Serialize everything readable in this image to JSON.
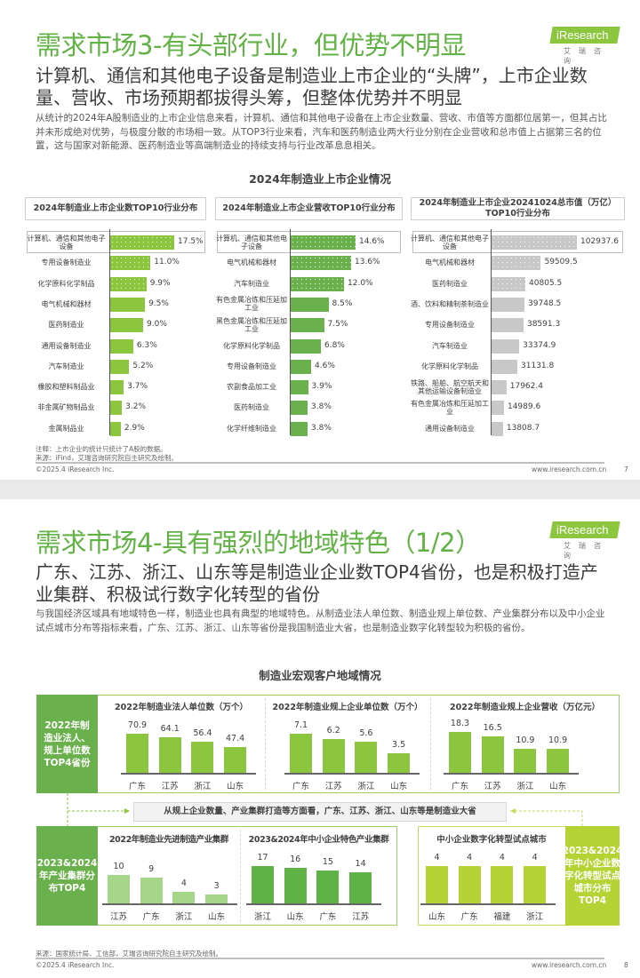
{
  "slide1": {
    "title": "需求市场3-有头部行业，但优势不明显",
    "subtitle": "计算机、通信和其他电子设备是制造业上市企业的“头牌”，上市企业数量、营收、市场预期都拔得头筹，但整体优势并不明显",
    "body": "从统计的2024年A股制造业的上市企业信息来看，计算机、通信和其他电子设备在上市企业数量、营收、市值等方面都位居第一，但其占比并未形成绝对优势，与极度分散的市场相一致。从TOP3行业来看，汽车和医药制造业两大行业分别在企业营收和总市值上占据第三名的位置，这与国家对新能源、医药制造业等高端制造业的持续支持与行业改革息息相关。",
    "chart_title": "2024年制造业上市企业情况",
    "note": "注释：上市企业的统计只统计了A股的数据。",
    "source": "来源：iFind，艾瑞咨询研究院自主研究及绘制。",
    "copyright": "©2025.4 iResearch Inc.",
    "website": "www.iresearch.com.cn",
    "page": "7"
  },
  "slide2": {
    "title": "需求市场4-具有强烈的地域特色（1/2）",
    "subtitle": "广东、江苏、浙江、山东等是制造业企业数TOP4省份，也是积极打造产业集群、积极试行数字化转型的省份",
    "body": "与我国经济区域具有地域特色一样，制造业也具有典型的地域特色。从制造业法人单位数、制造业规上单位数、产业集群分布以及中小企业试点城市分布等指标来看，广东、江苏、浙江、山东等省份是我国制造业大省，也是制造业数字化转型较为积极的省份。",
    "chart_title": "制造业宏观客户地域情况",
    "label_top": "2022年制造业法人、规上单位数TOP4省份",
    "label_bottom_left": "2023&2024年产业集群分布TOP4",
    "label_bottom_right": "2023&2024年中小企业数字化转型试点城市分布TOP4",
    "banner": "从规上企业数量、产业集群打造等方面看，广东、江苏、浙江、山东等是制造业大省",
    "source": "来源：国家统计局、工信部，艾瑞咨询研究院自主研究及绘制。",
    "copyright": "©2025.4 iResearch Inc.",
    "website": "www.iresearch.com.cn",
    "page": "8"
  },
  "logo": {
    "brand": "iResearch",
    "cn": "艾瑞咨询"
  },
  "colors": {
    "title_green": "#62b246",
    "bar_green": "#8cc63f",
    "dark_green": "#5fb346",
    "light_green": "#a6d68a",
    "yellow_green": "#b5d334",
    "grey_bar": "#c8c8c8"
  },
  "chart_data": [
    {
      "type": "bar",
      "orientation": "horizontal",
      "title": "2024年制造业上市企业数TOP10行业分布",
      "categories": [
        "计算机、通信和其他电子设备",
        "专用设备制造业",
        "化学原料化学制品",
        "电气机械和器材",
        "医药制造业",
        "通用设备制造业",
        "汽车制造业",
        "橡胶和塑料制品业",
        "非金属矿物制品业",
        "金属制品业"
      ],
      "values": [
        17.5,
        11.0,
        9.9,
        9.5,
        9.0,
        6.3,
        5.2,
        3.7,
        3.2,
        2.9
      ],
      "labels": [
        "17.5%",
        "11.0%",
        "9.9%",
        "9.5%",
        "9.0%",
        "6.3%",
        "5.2%",
        "3.7%",
        "3.2%",
        "2.9%"
      ]
    },
    {
      "type": "bar",
      "orientation": "horizontal",
      "title": "2024年制造业上市企业营收TOP10行业分布",
      "categories": [
        "计算机、通信和其他电子设备",
        "电气机械和器材",
        "汽车制造业",
        "有色金属冶炼和压延加工业",
        "黑色金属冶炼和压延加工业",
        "化学原料化学制品",
        "专用设备制造业",
        "农副食品加工业",
        "医药制造业",
        "化学纤维制造业"
      ],
      "values": [
        14.6,
        13.6,
        12.0,
        8.5,
        7.5,
        6.8,
        4.6,
        3.9,
        3.8,
        3.8
      ],
      "labels": [
        "14.6%",
        "13.6%",
        "12.0%",
        "8.5%",
        "7.5%",
        "6.8%",
        "4.6%",
        "3.9%",
        "3.8%",
        "3.8%"
      ]
    },
    {
      "type": "bar",
      "orientation": "horizontal",
      "title": "2024年制造业上市企业20241024总市值（万亿）TOP10行业分布",
      "categories": [
        "计算机、通信和其他电子设备",
        "电气机械和器材",
        "医药制造业",
        "酒、饮料和精制茶制造业",
        "专用设备制造业",
        "汽车制造业",
        "化学原料化学制品",
        "铁路、船舶、航空航天和其他运输设备制造业",
        "有色金属冶炼和压延加工业",
        "通用设备制造业"
      ],
      "values": [
        102937.6,
        59509.5,
        40805.5,
        39748.5,
        38591.3,
        33374.9,
        31131.8,
        17962.4,
        14989.6,
        13808.7
      ],
      "labels": [
        "102937.6",
        "59509.5",
        "40805.5",
        "39748.5",
        "38591.3",
        "33374.9",
        "31131.8",
        "17962.4",
        "14989.6",
        "13808.7"
      ]
    },
    {
      "type": "bar",
      "title": "2022年制造业法人单位数（万个）",
      "categories": [
        "广东",
        "江苏",
        "浙江",
        "山东"
      ],
      "values": [
        70.9,
        64.1,
        56.4,
        47.4
      ],
      "labels": [
        "70.9",
        "64.1",
        "56.4",
        "47.4"
      ]
    },
    {
      "type": "bar",
      "title": "2022年制造业规上企业单位数（万个）",
      "categories": [
        "广东",
        "江苏",
        "浙江",
        "山东"
      ],
      "values": [
        7.1,
        6.2,
        5.6,
        3.5
      ],
      "labels": [
        "7.1",
        "6.2",
        "5.6",
        "3.5"
      ]
    },
    {
      "type": "bar",
      "title": "2022年制造业规上企业营收（万亿元）",
      "categories": [
        "广东",
        "江苏",
        "浙江",
        "山东"
      ],
      "values": [
        18.3,
        16.5,
        10.9,
        10.9
      ],
      "labels": [
        "18.3",
        "16.5",
        "10.9",
        "10.9"
      ]
    },
    {
      "type": "bar",
      "title": "2022年制造业先进制造产业集群",
      "categories": [
        "江苏",
        "广东",
        "浙江",
        "山东"
      ],
      "values": [
        10,
        9,
        4,
        3
      ],
      "labels": [
        "10",
        "9",
        "4",
        "3"
      ]
    },
    {
      "type": "bar",
      "title": "2023&2024年中小企业特色产业集群",
      "categories": [
        "浙江",
        "山东",
        "广东",
        "江苏"
      ],
      "values": [
        17,
        16,
        15,
        14
      ],
      "labels": [
        "17",
        "16",
        "15",
        "14"
      ]
    },
    {
      "type": "bar",
      "title": "中小企业数字化转型试点城市",
      "categories": [
        "山东",
        "广东",
        "福建",
        "浙江"
      ],
      "values": [
        4,
        4,
        4,
        4
      ],
      "labels": [
        "4",
        "4",
        "4",
        "4"
      ]
    }
  ]
}
